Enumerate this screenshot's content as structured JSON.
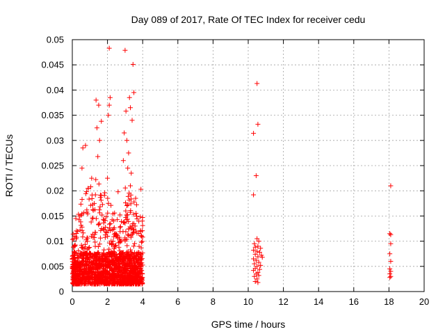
{
  "chart_data": {
    "type": "scatter",
    "title": "Day 089 of 2017, Rate Of TEC Index for receiver cedu",
    "xlabel": "GPS time / hours",
    "ylabel": "ROTI / TECUs",
    "xlim": [
      0,
      20
    ],
    "ylim": [
      0,
      0.05
    ],
    "xticks": [
      0,
      2,
      4,
      6,
      8,
      10,
      12,
      14,
      16,
      18,
      20
    ],
    "xtick_labels": [
      "0",
      "2",
      "4",
      "6",
      "8",
      "10",
      "12",
      "14",
      "16",
      "18",
      "20"
    ],
    "yticks": [
      0,
      0.005,
      0.01,
      0.015,
      0.02,
      0.025,
      0.03,
      0.035,
      0.04,
      0.045,
      0.05
    ],
    "ytick_labels": [
      "0",
      "0.005",
      "0.01",
      "0.015",
      "0.02",
      "0.025",
      "0.03",
      "0.035",
      "0.04",
      "0.045",
      "0.05"
    ],
    "grid": true,
    "marker": "+",
    "color": "#ff0000",
    "series": [
      {
        "name": "ROTI",
        "outliers": [
          [
            2.1,
            0.0483
          ],
          [
            3.0,
            0.0479
          ],
          [
            3.45,
            0.0451
          ],
          [
            3.5,
            0.0395
          ],
          [
            3.25,
            0.0385
          ],
          [
            2.15,
            0.0385
          ],
          [
            1.35,
            0.038
          ],
          [
            2.1,
            0.037
          ],
          [
            1.5,
            0.037
          ],
          [
            3.3,
            0.0365
          ],
          [
            3.05,
            0.0358
          ],
          [
            2.05,
            0.035
          ],
          [
            1.65,
            0.0338
          ],
          [
            3.4,
            0.034
          ],
          [
            1.4,
            0.0325
          ],
          [
            2.95,
            0.0315
          ],
          [
            0.75,
            0.029
          ],
          [
            0.6,
            0.0285
          ],
          [
            3.1,
            0.03
          ],
          [
            1.55,
            0.03
          ],
          [
            3.2,
            0.0275
          ],
          [
            1.45,
            0.0268
          ],
          [
            2.9,
            0.026
          ],
          [
            0.55,
            0.0245
          ],
          [
            3.15,
            0.0245
          ],
          [
            3.35,
            0.0235
          ],
          [
            1.1,
            0.0225
          ],
          [
            2.0,
            0.0225
          ],
          [
            3.3,
            0.021
          ],
          [
            0.9,
            0.0205
          ],
          [
            3.9,
            0.0203
          ],
          [
            2.6,
            0.0198
          ],
          [
            3.6,
            0.0185
          ],
          [
            0.2,
            0.0145
          ],
          [
            0.15,
            0.011
          ],
          [
            10.5,
            0.0413
          ],
          [
            10.55,
            0.0332
          ],
          [
            10.3,
            0.0314
          ],
          [
            10.45,
            0.023
          ],
          [
            10.3,
            0.0192
          ],
          [
            10.5,
            0.0105
          ],
          [
            10.6,
            0.01
          ],
          [
            10.35,
            0.0095
          ],
          [
            10.55,
            0.009
          ],
          [
            10.4,
            0.0088
          ],
          [
            10.7,
            0.0086
          ],
          [
            10.3,
            0.0082
          ],
          [
            10.5,
            0.008
          ],
          [
            10.65,
            0.0078
          ],
          [
            10.4,
            0.0074
          ],
          [
            10.75,
            0.0072
          ],
          [
            10.55,
            0.0069
          ],
          [
            10.8,
            0.0068
          ],
          [
            10.3,
            0.0065
          ],
          [
            10.45,
            0.0062
          ],
          [
            10.6,
            0.0058
          ],
          [
            10.35,
            0.0055
          ],
          [
            10.7,
            0.0052
          ],
          [
            10.5,
            0.005
          ],
          [
            10.4,
            0.0046
          ],
          [
            10.65,
            0.0044
          ],
          [
            10.3,
            0.0042
          ],
          [
            10.55,
            0.0038
          ],
          [
            10.45,
            0.0035
          ],
          [
            10.6,
            0.0032
          ],
          [
            10.35,
            0.003
          ],
          [
            10.5,
            0.0025
          ],
          [
            10.4,
            0.002
          ],
          [
            10.55,
            0.0018
          ],
          [
            18.1,
            0.021
          ],
          [
            18.05,
            0.0115
          ],
          [
            18.1,
            0.0113
          ],
          [
            18.1,
            0.0095
          ],
          [
            18.05,
            0.0075
          ],
          [
            18.1,
            0.006
          ],
          [
            18.05,
            0.0045
          ],
          [
            18.1,
            0.004
          ],
          [
            18.05,
            0.0035
          ],
          [
            18.1,
            0.003
          ],
          [
            18.05,
            0.0028
          ]
        ],
        "cluster": {
          "x_range": [
            0,
            4
          ],
          "y_min": 0.0015,
          "y_max_by_hour": [
            0.011,
            0.018,
            0.024,
            0.022,
            0.019,
            0.017,
            0.021,
            0.02,
            0.015
          ],
          "typical_y": 0.006,
          "point_count": 1600
        }
      }
    ]
  }
}
